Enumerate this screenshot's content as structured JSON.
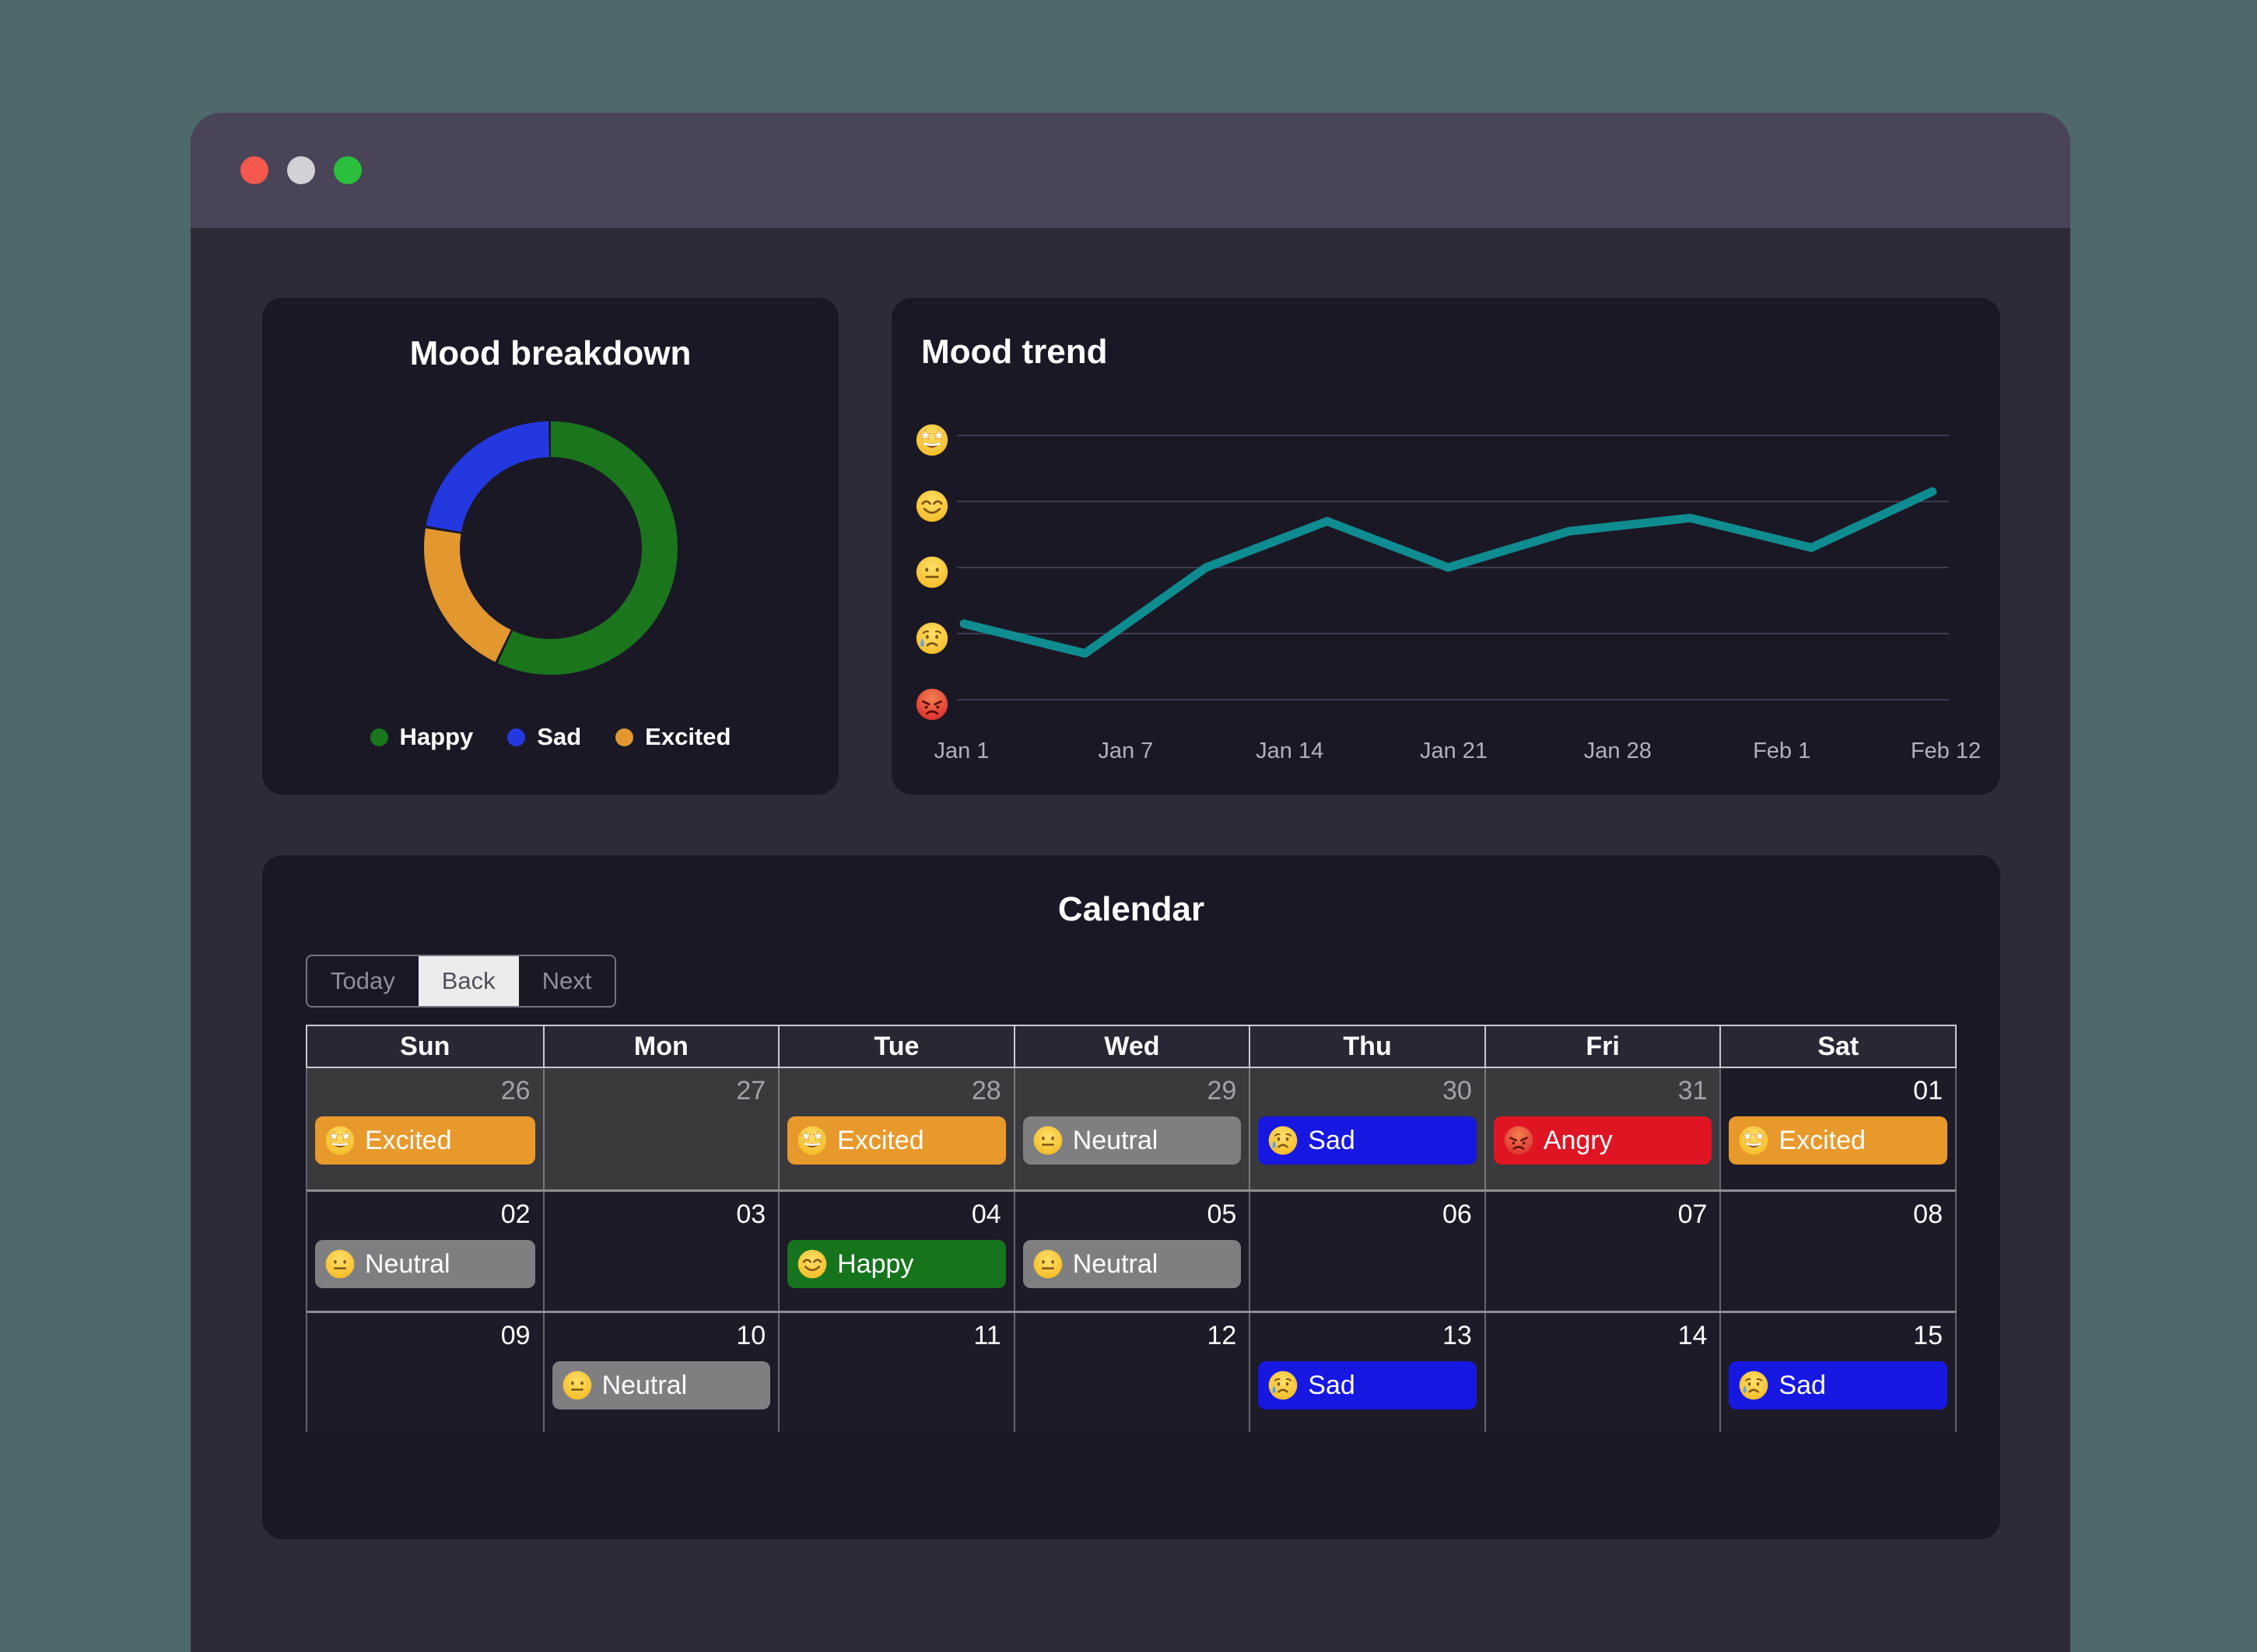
{
  "window": {
    "traffic_lights": [
      {
        "name": "close",
        "color": "#f4584e"
      },
      {
        "name": "minimize",
        "color": "#d2d1d5"
      },
      {
        "name": "zoom",
        "color": "#2abf3d"
      }
    ]
  },
  "breakdown": {
    "title": "Mood breakdown"
  },
  "trend": {
    "title": "Mood trend"
  },
  "chart_data": [
    {
      "type": "pie",
      "title": "Mood breakdown",
      "donut": true,
      "labels": [
        "Happy",
        "Sad",
        "Excited"
      ],
      "values": [
        57.2,
        22.2,
        20.6
      ],
      "unit": "percent of logged days",
      "colors": [
        "#1a751d",
        "#2438e0",
        "#e2982f"
      ],
      "draw_order_clockwise_from_top": [
        "Happy",
        "Excited",
        "Sad"
      ],
      "legend_position": "bottom"
    },
    {
      "type": "line",
      "title": "Mood trend",
      "x_tick_labels": [
        "Jan 1",
        "Jan 7",
        "Jan 14",
        "Jan 21",
        "Jan 28",
        "Feb 1",
        "Feb 12"
      ],
      "y_tick_emojis_bottom_to_top": [
        "angry",
        "cry",
        "neutral",
        "smile",
        "star-struck"
      ],
      "y_scale_note": "0=angry, 1=sad, 2=neutral, 3=happy, 4=excited",
      "ylim": [
        0,
        4
      ],
      "grid": "horizontal",
      "series": [
        {
          "name": "mood",
          "color": "#0f8c90",
          "values": [
            1.15,
            0.7,
            2.0,
            2.7,
            2.0,
            2.55,
            2.75,
            2.3,
            3.15
          ]
        }
      ]
    }
  ],
  "moods": {
    "Happy": {
      "emoji": "smile",
      "color": "#16741d"
    },
    "Sad": {
      "emoji": "cry",
      "color": "#1717e2"
    },
    "Neutral": {
      "emoji": "neutral",
      "color": "#7f7f82"
    },
    "Excited": {
      "emoji": "star-struck",
      "color": "#e8992b"
    },
    "Angry": {
      "emoji": "angry",
      "color": "#df1523"
    }
  },
  "calendar": {
    "title": "Calendar",
    "toolbar_buttons": [
      {
        "label": "Today",
        "active": false
      },
      {
        "label": "Back",
        "active": true
      },
      {
        "label": "Next",
        "active": false
      }
    ],
    "day_headers": [
      "Sun",
      "Mon",
      "Tue",
      "Wed",
      "Thu",
      "Fri",
      "Sat"
    ],
    "weeks": [
      [
        {
          "date": "26",
          "off_range": true,
          "mood": "Excited"
        },
        {
          "date": "27",
          "off_range": true
        },
        {
          "date": "28",
          "off_range": true,
          "mood": "Excited"
        },
        {
          "date": "29",
          "off_range": true,
          "mood": "Neutral"
        },
        {
          "date": "30",
          "off_range": true,
          "mood": "Sad"
        },
        {
          "date": "31",
          "off_range": true,
          "mood": "Angry"
        },
        {
          "date": "01",
          "mood": "Excited"
        }
      ],
      [
        {
          "date": "02",
          "mood": "Neutral"
        },
        {
          "date": "03"
        },
        {
          "date": "04",
          "mood": "Happy"
        },
        {
          "date": "05",
          "mood": "Neutral"
        },
        {
          "date": "06"
        },
        {
          "date": "07"
        },
        {
          "date": "08"
        }
      ],
      [
        {
          "date": "09"
        },
        {
          "date": "10",
          "mood": "Neutral"
        },
        {
          "date": "11"
        },
        {
          "date": "12"
        },
        {
          "date": "13",
          "mood": "Sad"
        },
        {
          "date": "14"
        },
        {
          "date": "15",
          "mood": "Sad"
        }
      ]
    ]
  }
}
